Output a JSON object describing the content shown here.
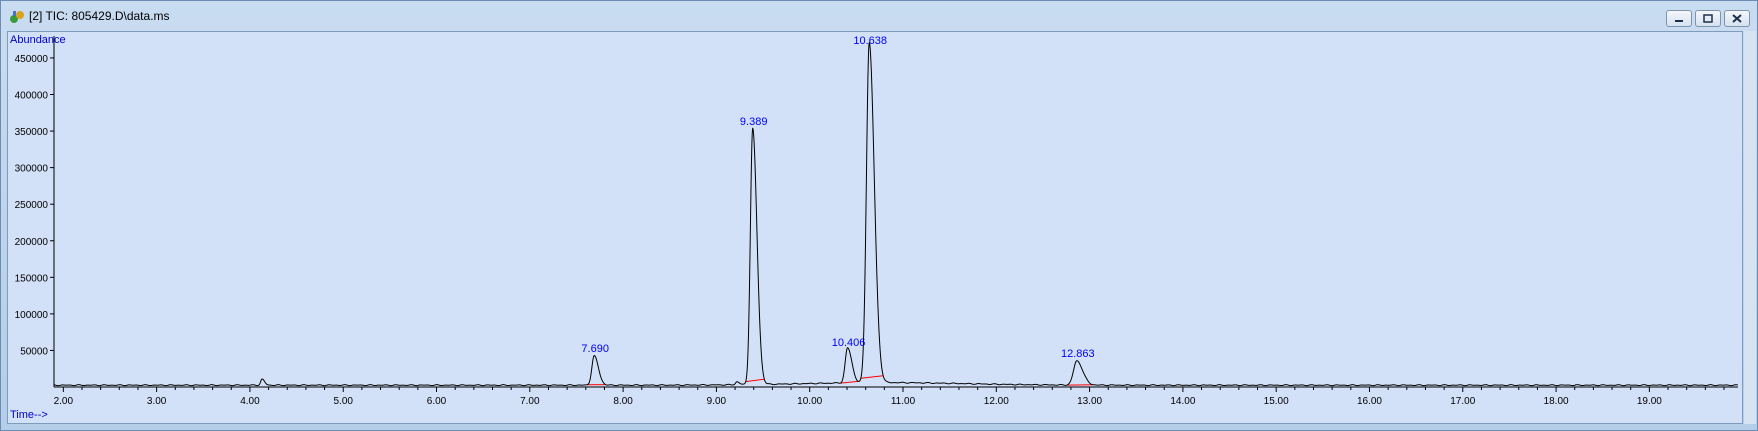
{
  "window": {
    "title": "[2] TIC: 805429.D\\data.ms",
    "minimize_label": "minimize",
    "restore_label": "restore",
    "close_label": "close"
  },
  "colors": {
    "trace": "#000000",
    "peak_label": "#0000ff",
    "baseline": "#ff0000",
    "background": "#d2e1f8"
  },
  "chart_data": {
    "type": "line",
    "title": "",
    "ylabel": "Abundance",
    "xlabel": "Time-->",
    "xlim": [
      1.9,
      19.95
    ],
    "ylim": [
      0,
      480000
    ],
    "x_ticks": [
      "2.00",
      "3.00",
      "4.00",
      "5.00",
      "6.00",
      "7.00",
      "8.00",
      "9.00",
      "10.00",
      "11.00",
      "12.00",
      "13.00",
      "14.00",
      "15.00",
      "16.00",
      "17.00",
      "18.00",
      "19.00"
    ],
    "y_ticks": [
      "50000",
      "100000",
      "150000",
      "200000",
      "250000",
      "300000",
      "350000",
      "400000",
      "450000"
    ],
    "peaks": [
      {
        "rt": 7.69,
        "label": "7.690",
        "height": 40000,
        "width": 0.025
      },
      {
        "rt": 9.389,
        "label": "9.389",
        "height": 350000,
        "width": 0.025
      },
      {
        "rt": 10.406,
        "label": "10.406",
        "height": 48000,
        "width": 0.025
      },
      {
        "rt": 10.638,
        "label": "10.638",
        "height": 465000,
        "width": 0.03
      },
      {
        "rt": 12.863,
        "label": "12.863",
        "height": 33000,
        "width": 0.035
      }
    ],
    "minor_peaks": [
      {
        "rt": 4.13,
        "height": 8000
      },
      {
        "rt": 9.22,
        "height": 4000
      }
    ],
    "baseline_level": 2500
  }
}
